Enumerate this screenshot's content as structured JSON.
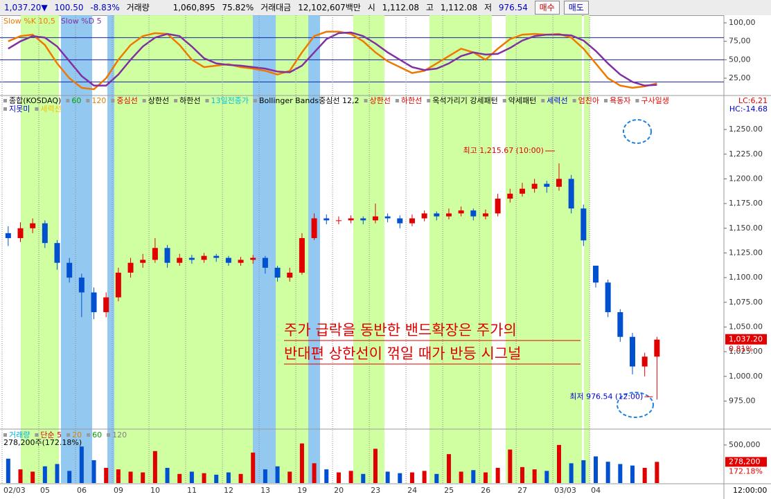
{
  "header": {
    "price": "1,037.20",
    "direction": "▼",
    "change": "100.50",
    "pct": "-8.83%",
    "volume_label": "거래량",
    "volume": "1,060,895",
    "volume_pct": "75.82%",
    "amount_label": "거래대금",
    "amount": "12,102,607백만",
    "open_label": "시",
    "open": "1,112.08",
    "high_label": "고",
    "high": "1,112.08",
    "low_label": "저",
    "low": "976.54",
    "buy": "매수",
    "sell": "매도"
  },
  "chart_data": [
    {
      "type": "line",
      "series": [
        {
          "name": "Slow %K 10,5",
          "color": "#f07800",
          "values": [
            75,
            82,
            84,
            70,
            45,
            25,
            12,
            10,
            25,
            50,
            70,
            82,
            86,
            85,
            70,
            50,
            40,
            42,
            44,
            40,
            38,
            35,
            30,
            35,
            60,
            82,
            88,
            88,
            85,
            75,
            60,
            48,
            40,
            32,
            35,
            45,
            55,
            65,
            60,
            50,
            65,
            78,
            84,
            85,
            84,
            85,
            80,
            65,
            45,
            25,
            15,
            12,
            14,
            18
          ]
        },
        {
          "name": "Slow %D 5",
          "color": "#8030a0",
          "values": [
            65,
            75,
            82,
            80,
            68,
            48,
            28,
            15,
            15,
            30,
            50,
            68,
            80,
            85,
            82,
            68,
            52,
            45,
            43,
            42,
            40,
            38,
            34,
            33,
            42,
            60,
            78,
            86,
            87,
            82,
            72,
            60,
            50,
            40,
            36,
            38,
            45,
            55,
            60,
            57,
            58,
            66,
            76,
            82,
            84,
            84,
            83,
            76,
            62,
            45,
            30,
            20,
            15,
            16
          ]
        }
      ],
      "ylim": [
        2.5,
        107.5
      ],
      "yticks": [
        {
          "value": 25,
          "label": "25,00"
        },
        {
          "value": 50,
          "label": "50,00"
        },
        {
          "value": 75,
          "label": "75,00"
        },
        {
          "value": 100,
          "label": "100,00"
        }
      ],
      "levels": [
        20,
        50,
        80
      ],
      "level_color": "#1020a0"
    },
    {
      "type": "candlestick",
      "categories": [
        "02/03",
        null,
        null,
        "05",
        null,
        null,
        "06",
        null,
        null,
        "09",
        null,
        null,
        "10",
        null,
        null,
        "11",
        null,
        null,
        "12",
        null,
        null,
        "13",
        null,
        null,
        "19",
        null,
        null,
        "20",
        null,
        null,
        "23",
        null,
        null,
        "24",
        null,
        null,
        "25",
        null,
        null,
        "26",
        null,
        null,
        "27",
        null,
        null,
        "03/03",
        null,
        null,
        "04",
        null,
        null,
        null,
        null,
        null
      ],
      "open": [
        1145,
        1140,
        1150,
        1155,
        1135,
        1115,
        1100,
        1085,
        1065,
        1080,
        1105,
        1115,
        1118,
        1130,
        1115,
        1120,
        1118,
        1122,
        1120,
        1115,
        1118,
        1120,
        1110,
        1100,
        1105,
        1140,
        1160,
        1158,
        1158,
        1160,
        1158,
        1162,
        1160,
        1155,
        1160,
        1165,
        1162,
        1165,
        1168,
        1162,
        1165,
        1180,
        1185,
        1190,
        1195,
        1192,
        1200,
        1170,
        1112.08,
        1095,
        1065,
        1040,
        1010,
        1020
      ],
      "high": [
        1152,
        1156,
        1160,
        1158,
        1138,
        1120,
        1104,
        1090,
        1085,
        1110,
        1120,
        1124,
        1140,
        1133,
        1124,
        1123,
        1125,
        1124,
        1122,
        1121,
        1123,
        1122,
        1112,
        1110,
        1145,
        1165,
        1164,
        1162,
        1163,
        1162,
        1175,
        1165,
        1163,
        1164,
        1168,
        1167,
        1170,
        1172,
        1170,
        1169,
        1185,
        1190,
        1196,
        1200,
        1198,
        1215.67,
        1204,
        1174,
        1112.08,
        1098,
        1068,
        1044,
        1024,
        1040
      ],
      "low": [
        1132,
        1136,
        1145,
        1130,
        1108,
        1095,
        1060,
        1058,
        1060,
        1076,
        1100,
        1110,
        1115,
        1110,
        1112,
        1114,
        1115,
        1116,
        1112,
        1112,
        1114,
        1104,
        1096,
        1096,
        1103,
        1138,
        1154,
        1154,
        1155,
        1154,
        1155,
        1156,
        1150,
        1152,
        1157,
        1158,
        1159,
        1162,
        1158,
        1159,
        1162,
        1176,
        1182,
        1186,
        1186,
        1188,
        1165,
        1132,
        1090,
        1060,
        1035,
        1002,
        1000,
        976.54
      ],
      "close": [
        1140,
        1150,
        1155,
        1135,
        1115,
        1100,
        1085,
        1065,
        1080,
        1105,
        1115,
        1118,
        1130,
        1115,
        1120,
        1118,
        1122,
        1120,
        1115,
        1118,
        1120,
        1110,
        1100,
        1105,
        1140,
        1160,
        1158,
        1158,
        1160,
        1158,
        1162,
        1160,
        1155,
        1160,
        1165,
        1162,
        1165,
        1168,
        1162,
        1165,
        1180,
        1185,
        1190,
        1195,
        1192,
        1200,
        1170,
        1137.7,
        1095,
        1065,
        1040,
        1010,
        1020,
        1037.2
      ],
      "up_color": "#e00000",
      "down_color": "#0050d0",
      "ylim": [
        948,
        1283
      ],
      "yticks": [
        {
          "value": 975,
          "label": "975.00"
        },
        {
          "value": 1000,
          "label": "1,000.00"
        },
        {
          "value": 1025,
          "label": "1,025.00"
        },
        {
          "value": 1050,
          "label": "1,050.00"
        },
        {
          "value": 1075,
          "label": "1,075.00"
        },
        {
          "value": 1100,
          "label": "1,100.00"
        },
        {
          "value": 1125,
          "label": "1,125.00"
        },
        {
          "value": 1150,
          "label": "1,150.00"
        },
        {
          "value": 1175,
          "label": "1,175.00"
        },
        {
          "value": 1200,
          "label": "1,200.00"
        },
        {
          "value": 1225,
          "label": "1,225.00"
        },
        {
          "value": 1250,
          "label": "1,250.00"
        }
      ],
      "legend_rows": [
        [
          {
            "text": "종합(KOSDAQ)",
            "color": "#000000"
          },
          {
            "text": "60",
            "color": "#00a000"
          },
          {
            "text": "120",
            "color": "#e08000"
          },
          {
            "text": "중심선",
            "color": "#e00000"
          },
          {
            "text": "상한선",
            "color": "#000000"
          },
          {
            "text": "하한선",
            "color": "#000000"
          },
          {
            "text": "13일전종가",
            "color": "#00c0e0"
          },
          {
            "text": "Bollinger Bands중심선 12,2",
            "color": "#000000"
          },
          {
            "text": "상한선",
            "color": "#e00000"
          },
          {
            "text": "하한선",
            "color": "#e00000"
          },
          {
            "text": "옥석가리기 강세패턴",
            "color": "#000000"
          },
          {
            "text": "약세패턴",
            "color": "#000000"
          },
          {
            "text": "세력선",
            "color": "#0000d0"
          },
          {
            "text": "엄친아",
            "color": "#e00000"
          },
          {
            "text": "욕동자",
            "color": "#e00000"
          },
          {
            "text": "구사일생",
            "color": "#e00000"
          }
        ],
        [
          {
            "text": "지못미",
            "color": "#0000d0"
          },
          {
            "text": "세력선",
            "color": "#f0c000"
          }
        ]
      ],
      "lc": "LC:6,21",
      "hc": "HC:-14.68",
      "last_price_label": "1,037.20",
      "last_pct": "0.81%",
      "high_note": "최고 1,215.67 (10:00)",
      "low_note": "최저 976.54 (12:00)",
      "note_lines": [
        "주가 급락을 동반한 밴드확장은 주가의",
        "반대편 상한선이 꺾일 때가 반등 시그널"
      ]
    },
    {
      "type": "bar",
      "legend_items": [
        {
          "text": "거래량",
          "color": "#00b0e0"
        },
        {
          "text": "단순 5",
          "color": "#e00000"
        },
        {
          "text": "20",
          "color": "#e08000"
        },
        {
          "text": "60",
          "color": "#00a000"
        },
        {
          "text": "120",
          "color": "#808080"
        }
      ],
      "volume_note": "278,200주(172.18%)",
      "values": [
        320000,
        180000,
        150000,
        220000,
        250000,
        160000,
        480000,
        300000,
        200000,
        180000,
        150000,
        140000,
        420000,
        200000,
        120000,
        150000,
        130000,
        110000,
        140000,
        120000,
        400000,
        180000,
        220000,
        150000,
        520000,
        260000,
        180000,
        140000,
        160000,
        120000,
        450000,
        150000,
        130000,
        140000,
        160000,
        120000,
        380000,
        150000,
        170000,
        140000,
        200000,
        440000,
        210000,
        180000,
        160000,
        500000,
        260000,
        300000,
        350000,
        280000,
        250000,
        230000,
        200000,
        278200
      ],
      "ylim": [
        0,
        690000
      ],
      "yticks": [
        {
          "value": 500000,
          "label": "500,000"
        }
      ],
      "last_label": "278,200",
      "last_pct": "172.18%",
      "time_label": "12:00:00"
    }
  ]
}
